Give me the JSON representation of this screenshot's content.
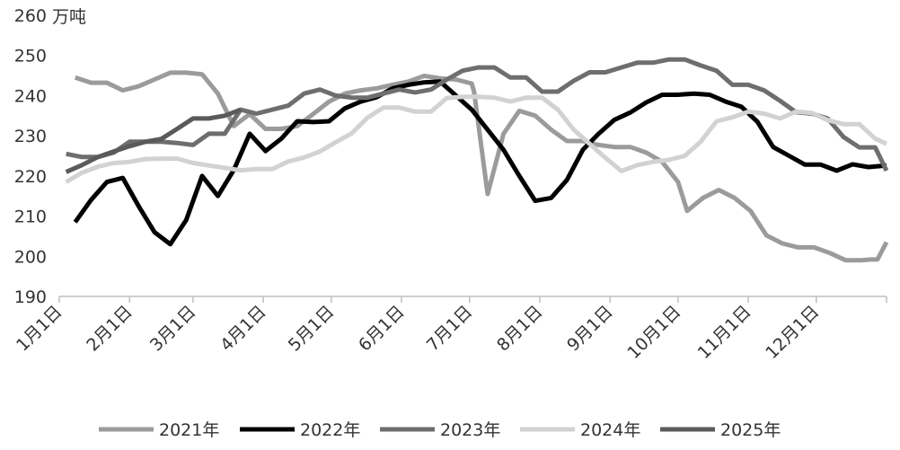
{
  "chart_data": {
    "type": "line",
    "unit": "万吨",
    "ylim": [
      190,
      260
    ],
    "yticks": [
      190,
      200,
      210,
      220,
      230,
      240,
      250,
      260
    ],
    "xlim": [
      1,
      366
    ],
    "xticks": [
      {
        "day": 1,
        "label": "1月1日"
      },
      {
        "day": 32,
        "label": "2月1日"
      },
      {
        "day": 60,
        "label": "3月1日"
      },
      {
        "day": 91,
        "label": "4月1日"
      },
      {
        "day": 121,
        "label": "5月1日"
      },
      {
        "day": 152,
        "label": "6月1日"
      },
      {
        "day": 182,
        "label": "7月1日"
      },
      {
        "day": 213,
        "label": "8月1日"
      },
      {
        "day": 244,
        "label": "9月1日"
      },
      {
        "day": 274,
        "label": "10月1日"
      },
      {
        "day": 305,
        "label": "11月1日"
      },
      {
        "day": 335,
        "label": "12月1日"
      }
    ],
    "grid": false,
    "legend": "bottom",
    "series": [
      {
        "name": "2021年",
        "color": "#9b9b9b",
        "points": [
          [
            8,
            244.5
          ],
          [
            15,
            243.2
          ],
          [
            22,
            243.2
          ],
          [
            29,
            241.3
          ],
          [
            36,
            242.3
          ],
          [
            43,
            244
          ],
          [
            50,
            245.7
          ],
          [
            57,
            245.7
          ],
          [
            64,
            245.3
          ],
          [
            71,
            240.5
          ],
          [
            78,
            232.4
          ],
          [
            85,
            235.4
          ],
          [
            92,
            231.7
          ],
          [
            99,
            231.7
          ],
          [
            106,
            232.4
          ],
          [
            113,
            235.4
          ],
          [
            120,
            238.5
          ],
          [
            127,
            240.5
          ],
          [
            134,
            241.3
          ],
          [
            141,
            241.8
          ],
          [
            148,
            242.7
          ],
          [
            155,
            243.5
          ],
          [
            162,
            244.9
          ],
          [
            169,
            244.3
          ],
          [
            176,
            244
          ],
          [
            183,
            243
          ],
          [
            184,
            241
          ],
          [
            190,
            215.5
          ],
          [
            197,
            230.5
          ],
          [
            204,
            236.2
          ],
          [
            211,
            235
          ],
          [
            218,
            231.5
          ],
          [
            225,
            228.7
          ],
          [
            232,
            228.7
          ],
          [
            239,
            227.7
          ],
          [
            246,
            227.2
          ],
          [
            253,
            227.2
          ],
          [
            260,
            225.8
          ],
          [
            267,
            223.5
          ],
          [
            274,
            218.5
          ],
          [
            278,
            211.3
          ],
          [
            285,
            214.5
          ],
          [
            292,
            216.5
          ],
          [
            299,
            214.5
          ],
          [
            306,
            211.3
          ],
          [
            313,
            205.2
          ],
          [
            320,
            203.2
          ],
          [
            327,
            202.2
          ],
          [
            334,
            202.2
          ],
          [
            341,
            200.8
          ],
          [
            348,
            199
          ],
          [
            355,
            199
          ],
          [
            359,
            199.2
          ],
          [
            362,
            199.2
          ],
          [
            366,
            203.5
          ]
        ]
      },
      {
        "name": "2022年",
        "color": "#000000",
        "points": [
          [
            8,
            208.5
          ],
          [
            15,
            214
          ],
          [
            22,
            218.5
          ],
          [
            29,
            219.5
          ],
          [
            36,
            212.5
          ],
          [
            43,
            206
          ],
          [
            50,
            203
          ],
          [
            57,
            209
          ],
          [
            64,
            220
          ],
          [
            71,
            215
          ],
          [
            78,
            221.5
          ],
          [
            85,
            230.5
          ],
          [
            92,
            226.2
          ],
          [
            99,
            229.3
          ],
          [
            106,
            233.6
          ],
          [
            113,
            233.4
          ],
          [
            120,
            233.6
          ],
          [
            127,
            236.8
          ],
          [
            134,
            238.5
          ],
          [
            141,
            239.6
          ],
          [
            148,
            241.8
          ],
          [
            155,
            242.7
          ],
          [
            162,
            243.3
          ],
          [
            169,
            243.5
          ],
          [
            176,
            240
          ],
          [
            183,
            236.5
          ],
          [
            190,
            231.5
          ],
          [
            197,
            226.5
          ],
          [
            204,
            220
          ],
          [
            211,
            213.8
          ],
          [
            218,
            214.5
          ],
          [
            225,
            219
          ],
          [
            232,
            226.5
          ],
          [
            239,
            230.5
          ],
          [
            246,
            234
          ],
          [
            253,
            235.8
          ],
          [
            260,
            238.3
          ],
          [
            267,
            240.2
          ],
          [
            274,
            240.2
          ],
          [
            281,
            240.5
          ],
          [
            288,
            240.2
          ],
          [
            295,
            238.5
          ],
          [
            302,
            237.2
          ],
          [
            309,
            233.5
          ],
          [
            316,
            227.2
          ],
          [
            323,
            225
          ],
          [
            330,
            222.8
          ],
          [
            337,
            222.8
          ],
          [
            344,
            221.3
          ],
          [
            351,
            222.9
          ],
          [
            358,
            222.2
          ],
          [
            366,
            222.6
          ]
        ]
      },
      {
        "name": "2023年",
        "color": "#6e6e6e",
        "points": [
          [
            4,
            225.5
          ],
          [
            11,
            224.7
          ],
          [
            18,
            224.7
          ],
          [
            25,
            225.8
          ],
          [
            32,
            228.5
          ],
          [
            39,
            228.5
          ],
          [
            46,
            228.5
          ],
          [
            53,
            228.2
          ],
          [
            60,
            227.7
          ],
          [
            67,
            230.5
          ],
          [
            74,
            230.5
          ],
          [
            81,
            236.5
          ],
          [
            88,
            235.5
          ],
          [
            95,
            236.5
          ],
          [
            102,
            237.5
          ],
          [
            109,
            240.5
          ],
          [
            116,
            241.5
          ],
          [
            123,
            240
          ],
          [
            130,
            239.5
          ],
          [
            137,
            239.5
          ],
          [
            144,
            240.5
          ],
          [
            151,
            241.5
          ],
          [
            158,
            240.8
          ],
          [
            165,
            241.5
          ],
          [
            172,
            244
          ],
          [
            179,
            246.2
          ],
          [
            186,
            247
          ],
          [
            193,
            247
          ],
          [
            200,
            244.5
          ],
          [
            207,
            244.5
          ],
          [
            214,
            241
          ],
          [
            221,
            241
          ],
          [
            228,
            243.7
          ],
          [
            235,
            245.8
          ],
          [
            242,
            245.8
          ],
          [
            249,
            247
          ],
          [
            256,
            248.2
          ],
          [
            263,
            248.2
          ],
          [
            270,
            249
          ],
          [
            277,
            249
          ],
          [
            284,
            247.5
          ],
          [
            291,
            246.2
          ],
          [
            298,
            242.7
          ],
          [
            305,
            242.7
          ],
          [
            312,
            241.3
          ],
          [
            319,
            238.7
          ],
          [
            326,
            235.9
          ],
          [
            333,
            235.5
          ],
          [
            340,
            234.3
          ],
          [
            347,
            229.7
          ],
          [
            354,
            227.1
          ],
          [
            361,
            227.1
          ],
          [
            366,
            221.3
          ]
        ]
      },
      {
        "name": "2024年",
        "color": "#d2d2d2",
        "points": [
          [
            4,
            218.5
          ],
          [
            11,
            220.8
          ],
          [
            18,
            222.3
          ],
          [
            25,
            223.2
          ],
          [
            32,
            223.5
          ],
          [
            39,
            224.2
          ],
          [
            46,
            224.3
          ],
          [
            53,
            224.3
          ],
          [
            60,
            223.2
          ],
          [
            67,
            222.6
          ],
          [
            74,
            222
          ],
          [
            81,
            221.4
          ],
          [
            88,
            221.7
          ],
          [
            95,
            221.7
          ],
          [
            102,
            223.6
          ],
          [
            109,
            224.6
          ],
          [
            116,
            226.1
          ],
          [
            123,
            228.4
          ],
          [
            130,
            230.6
          ],
          [
            137,
            234.5
          ],
          [
            144,
            237
          ],
          [
            151,
            237
          ],
          [
            158,
            236
          ],
          [
            165,
            236
          ],
          [
            172,
            239.4
          ],
          [
            179,
            239.7
          ],
          [
            186,
            239.7
          ],
          [
            193,
            239.5
          ],
          [
            200,
            238.5
          ],
          [
            207,
            239.5
          ],
          [
            214,
            239.5
          ],
          [
            221,
            236.5
          ],
          [
            228,
            231.5
          ],
          [
            235,
            228
          ],
          [
            242,
            224.5
          ],
          [
            249,
            221.2
          ],
          [
            256,
            222.7
          ],
          [
            263,
            223.5
          ],
          [
            270,
            224
          ],
          [
            277,
            225
          ],
          [
            284,
            228.5
          ],
          [
            291,
            233.6
          ],
          [
            298,
            234.6
          ],
          [
            305,
            236
          ],
          [
            312,
            235.5
          ],
          [
            319,
            234.3
          ],
          [
            326,
            236
          ],
          [
            333,
            235.7
          ],
          [
            340,
            233.9
          ],
          [
            347,
            232.9
          ],
          [
            354,
            232.9
          ],
          [
            361,
            229.3
          ],
          [
            366,
            228
          ]
        ]
      },
      {
        "name": "2025年",
        "color": "#5a5a5a",
        "points": [
          [
            4,
            221
          ],
          [
            11,
            222.7
          ],
          [
            18,
            224.7
          ],
          [
            25,
            226.1
          ],
          [
            32,
            227.4
          ],
          [
            39,
            228.5
          ],
          [
            46,
            229.2
          ],
          [
            53,
            231.7
          ],
          [
            60,
            234.3
          ],
          [
            67,
            234.3
          ],
          [
            74,
            235
          ],
          [
            81,
            236.5
          ]
        ]
      }
    ]
  }
}
